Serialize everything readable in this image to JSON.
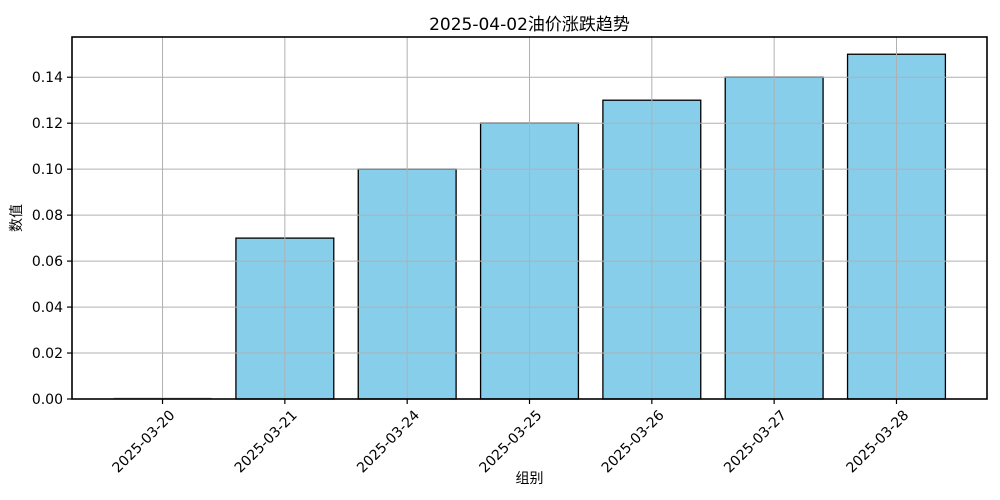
{
  "chart_data": {
    "type": "bar",
    "title": "2025-04-02油价涨跌趋势",
    "xlabel": "组别",
    "ylabel": "数值",
    "categories": [
      "2025-03-20",
      "2025-03-21",
      "2025-03-24",
      "2025-03-25",
      "2025-03-26",
      "2025-03-27",
      "2025-03-28"
    ],
    "values": [
      0.0,
      0.07,
      0.1,
      0.12,
      0.13,
      0.14,
      0.15
    ],
    "ylim": [
      0,
      0.1575
    ],
    "yticks": [
      0.0,
      0.02,
      0.04,
      0.06,
      0.08,
      0.1,
      0.12,
      0.14
    ],
    "tick_label_rotation": 45,
    "grid": true,
    "legend": "none",
    "bar_color": "#87CEEB",
    "bar_edge_color": "#000000",
    "grid_color": "#b0b0b0",
    "axis_color": "#000000",
    "background_color": "#ffffff"
  }
}
